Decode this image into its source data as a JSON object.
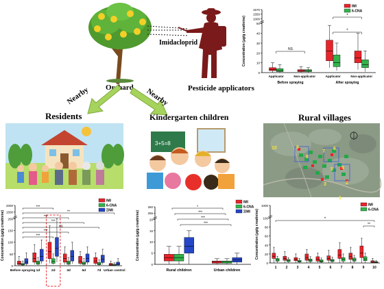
{
  "labels": {
    "imidacloprid": "Imidacloprid",
    "orchard": "Orchard",
    "pesticide_applicators": "Pesticide applicators",
    "nearby_left": "Nearby",
    "nearby_right": "Nearby",
    "residents": "Residents",
    "kindergarten_children": "Kindergarten children",
    "rural_villages": "Rural villages"
  },
  "colors": {
    "imi": "#e8242a",
    "cna": "#33b34a",
    "sum_imi": "#2546c8",
    "arrow": "#a6d35c",
    "silhouette": "#7a1a1a"
  },
  "chart_data": [
    {
      "id": "applicators",
      "type": "box",
      "ylabel": "Concentration (μg/g creatinine)",
      "yticks": [
        "0",
        "10",
        "20",
        "30",
        "40",
        "50",
        "1000",
        "1550",
        "1570"
      ],
      "legend": [
        "IMI",
        "6-CNA"
      ],
      "legend_position": "top-right",
      "groups": [
        {
          "title": "Before spraying",
          "categories": [
            "Applicator",
            "Non-applicator"
          ]
        },
        {
          "title": "After spraying",
          "categories": [
            "Applicator",
            "Non-applicator"
          ]
        }
      ],
      "annotations": [
        "NS",
        "*",
        "*"
      ],
      "series": [
        {
          "name": "IMI",
          "boxes": [
            [
              0,
              2,
              3,
              5,
              10
            ],
            [
              0,
              1,
              2,
              3,
              6
            ],
            [
              5,
              12,
              22,
              33,
              48
            ],
            [
              3,
              10,
              15,
              22,
              40
            ]
          ]
        },
        {
          "name": "6-CNA",
          "boxes": [
            [
              0,
              1,
              2,
              4,
              8
            ],
            [
              0,
              1,
              2,
              3,
              5
            ],
            [
              2,
              6,
              10,
              18,
              30
            ],
            [
              1,
              5,
              8,
              13,
              22
            ]
          ]
        }
      ]
    },
    {
      "id": "residents",
      "type": "box",
      "ylabel": "Concentration (μg/g creatinine)",
      "yticks": [
        "0",
        "50",
        "100",
        "150",
        "200",
        "1500",
        "2000"
      ],
      "legend": [
        "IMI",
        "6-CNA",
        "ΣIMI"
      ],
      "legend_position": "top-right",
      "categories": [
        "Before spraying",
        "1d",
        "2d",
        "3d",
        "5d",
        "7d",
        "Urban control"
      ],
      "annotations": [
        "***",
        "**",
        "***",
        "***",
        "ns",
        "***",
        "***"
      ],
      "highlight": "2d",
      "series": [
        {
          "name": "IMI",
          "boxes": [
            [
              0,
              5,
              10,
              20,
              40
            ],
            [
              5,
              15,
              30,
              55,
              90
            ],
            [
              10,
              30,
              60,
              100,
              170
            ],
            [
              5,
              15,
              30,
              50,
              80
            ],
            [
              3,
              10,
              20,
              40,
              60
            ],
            [
              3,
              10,
              20,
              35,
              55
            ],
            [
              0,
              2,
              5,
              10,
              20
            ]
          ]
        },
        {
          "name": "6-CNA",
          "boxes": [
            [
              0,
              3,
              5,
              10,
              20
            ],
            [
              2,
              6,
              12,
              20,
              35
            ],
            [
              5,
              10,
              18,
              30,
              50
            ],
            [
              2,
              6,
              12,
              20,
              35
            ],
            [
              2,
              5,
              10,
              15,
              30
            ],
            [
              1,
              4,
              8,
              14,
              25
            ],
            [
              0,
              1,
              3,
              6,
              12
            ]
          ]
        },
        {
          "name": "ΣIMI",
          "boxes": [
            [
              0,
              8,
              15,
              30,
              55
            ],
            [
              8,
              20,
              40,
              70,
              110
            ],
            [
              15,
              40,
              75,
              120,
              200
            ],
            [
              8,
              20,
              40,
              65,
              100
            ],
            [
              5,
              15,
              30,
              50,
              80
            ],
            [
              5,
              14,
              28,
              45,
              70
            ],
            [
              0,
              3,
              8,
              15,
              30
            ]
          ]
        }
      ]
    },
    {
      "id": "children",
      "type": "box",
      "ylabel": "Concentration (μg/g creatinine)",
      "yticks": [
        "0",
        "5",
        "10",
        "15",
        "20",
        "255",
        "260"
      ],
      "legend": [
        "IMI",
        "6-CNA",
        "ΣIMI"
      ],
      "legend_position": "top-right",
      "categories": [
        "Rural children",
        "Urban children"
      ],
      "annotations": [
        "*",
        "***",
        "***",
        "***"
      ],
      "series": [
        {
          "name": "IMI",
          "boxes": [
            [
              0,
              1.5,
              3,
              4.5,
              8
            ],
            [
              0,
              0.5,
              1,
              1.5,
              2.5
            ]
          ]
        },
        {
          "name": "6-CNA",
          "boxes": [
            [
              0,
              1.5,
              3,
              4.5,
              8
            ],
            [
              0,
              0.5,
              1,
              1.5,
              2.5
            ]
          ]
        },
        {
          "name": "ΣIMI",
          "boxes": [
            [
              0,
              5,
              8,
              12,
              15
            ],
            [
              0,
              1,
              2,
              3,
              5
            ]
          ]
        }
      ]
    },
    {
      "id": "villages",
      "type": "box",
      "ylabel": "Concentration (μg/g creatinine)",
      "yticks": [
        "0",
        "20",
        "40",
        "60",
        "80",
        "100",
        "1000"
      ],
      "legend": [
        "IMI",
        "6-CNA"
      ],
      "legend_position": "top-right",
      "categories": [
        "1",
        "2",
        "3",
        "4",
        "5",
        "6",
        "7",
        "8",
        "9",
        "10"
      ],
      "annotations": [
        "*",
        "**"
      ],
      "series": [
        {
          "name": "IMI",
          "boxes": [
            [
              0,
              10,
              15,
              22,
              35
            ],
            [
              0,
              6,
              10,
              15,
              25
            ],
            [
              0,
              5,
              8,
              12,
              20
            ],
            [
              0,
              6,
              12,
              20,
              30
            ],
            [
              0,
              4,
              8,
              14,
              22
            ],
            [
              0,
              6,
              10,
              16,
              28
            ],
            [
              0,
              10,
              18,
              30,
              45
            ],
            [
              0,
              8,
              14,
              22,
              35
            ],
            [
              0,
              12,
              22,
              38,
              55
            ],
            [
              0,
              1,
              3,
              5,
              10
            ]
          ]
        },
        {
          "name": "6-CNA",
          "boxes": [
            [
              0,
              4,
              7,
              10,
              15
            ],
            [
              0,
              3,
              5,
              8,
              12
            ],
            [
              0,
              2,
              4,
              6,
              10
            ],
            [
              0,
              3,
              6,
              9,
              14
            ],
            [
              0,
              2,
              4,
              7,
              11
            ],
            [
              0,
              3,
              5,
              8,
              13
            ],
            [
              0,
              4,
              8,
              12,
              20
            ],
            [
              0,
              4,
              7,
              11,
              17
            ],
            [
              0,
              5,
              9,
              14,
              22
            ],
            [
              0,
              1,
              2,
              3,
              5
            ]
          ]
        }
      ]
    }
  ],
  "map_labels": [
    "10",
    "9",
    "8",
    "7",
    "6",
    "5",
    "4",
    "3",
    "2",
    "1"
  ]
}
